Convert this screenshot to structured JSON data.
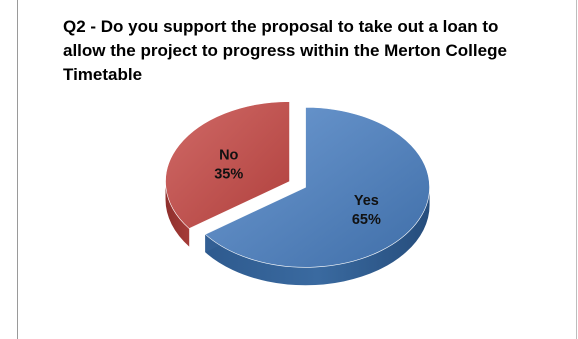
{
  "chart_data": {
    "type": "pie",
    "title": "Q2 - Do you support the proposal to take out a loan to allow the project to progress within the Merton College Timetable",
    "categories": [
      "Yes",
      "No"
    ],
    "values": [
      65,
      35
    ],
    "data_labels": [
      "65%",
      "35%"
    ],
    "colors": {
      "Yes": "#4f81bd",
      "No": "#c0504d"
    },
    "exploded": true,
    "three_d": true,
    "legend": "none"
  }
}
